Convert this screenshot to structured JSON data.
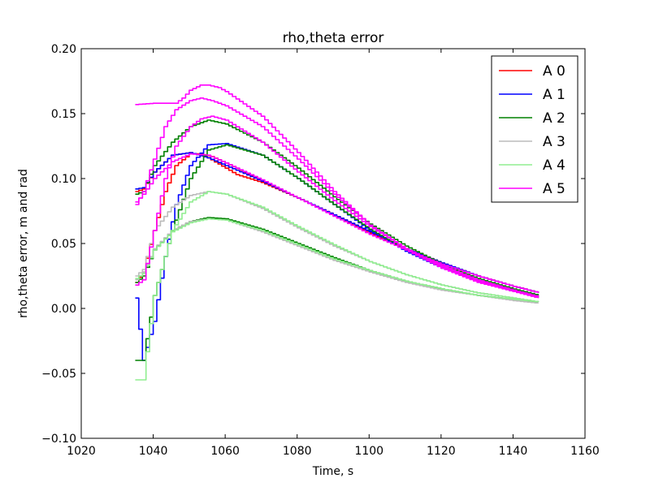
{
  "chart_data": {
    "type": "line",
    "title": "rho,theta error",
    "xlabel": "Time, s",
    "ylabel": "rho,theta error, m and rad",
    "xlim": [
      1020,
      1160
    ],
    "ylim": [
      -0.1,
      0.2
    ],
    "xticks": [
      1020,
      1040,
      1060,
      1080,
      1100,
      1120,
      1140,
      1160
    ],
    "yticks": [
      -0.1,
      -0.05,
      0.0,
      0.05,
      0.1,
      0.15,
      0.2
    ],
    "xtick_labels": [
      "1020",
      "1040",
      "1060",
      "1080",
      "1100",
      "1120",
      "1140",
      "1160"
    ],
    "ytick_labels": [
      "−0.10",
      "−0.05",
      "0.00",
      "0.05",
      "0.10",
      "0.15",
      "0.20"
    ],
    "grid": false,
    "legend_position": "top-right",
    "series": [
      {
        "name": "A 0",
        "color": "#ff0000",
        "curves": [
          {
            "x": [
              1035,
              1037,
              1040,
              1045,
              1050,
              1055,
              1060,
              1063,
              1070,
              1080,
              1090,
              1100,
              1110,
              1120,
              1130,
              1140,
              1147
            ],
            "y": [
              0.09,
              0.092,
              0.105,
              0.118,
              0.12,
              0.116,
              0.108,
              0.103,
              0.097,
              0.085,
              0.072,
              0.058,
              0.045,
              0.034,
              0.025,
              0.017,
              0.012
            ]
          },
          {
            "x": [
              1035,
              1037,
              1040,
              1043,
              1046,
              1050,
              1053,
              1056,
              1060,
              1065,
              1070,
              1080,
              1090,
              1100,
              1110,
              1120,
              1130,
              1140,
              1147
            ],
            "y": [
              0.02,
              0.028,
              0.06,
              0.09,
              0.11,
              0.119,
              0.119,
              0.117,
              0.112,
              0.105,
              0.098,
              0.085,
              0.072,
              0.059,
              0.046,
              0.035,
              0.025,
              0.017,
              0.012
            ]
          }
        ]
      },
      {
        "name": "A 1",
        "color": "#0000ff",
        "curves": [
          {
            "x": [
              1035,
              1037,
              1040,
              1045,
              1050,
              1055,
              1060,
              1070,
              1080,
              1090,
              1100,
              1110,
              1120,
              1130,
              1140,
              1147
            ],
            "y": [
              0.092,
              0.093,
              0.105,
              0.118,
              0.12,
              0.116,
              0.11,
              0.098,
              0.085,
              0.072,
              0.059,
              0.046,
              0.035,
              0.025,
              0.017,
              0.012
            ]
          },
          {
            "x": [
              1035,
              1037,
              1040,
              1043,
              1046,
              1050,
              1055,
              1060,
              1070,
              1080,
              1090,
              1100,
              1110,
              1120,
              1130,
              1140,
              1147
            ],
            "y": [
              0.008,
              -0.04,
              -0.01,
              0.04,
              0.08,
              0.11,
              0.126,
              0.127,
              0.118,
              0.1,
              0.08,
              0.06,
              0.044,
              0.031,
              0.021,
              0.013,
              0.009
            ]
          }
        ]
      },
      {
        "name": "A 2",
        "color": "#008000",
        "curves": [
          {
            "x": [
              1035,
              1037,
              1040,
              1045,
              1050,
              1055,
              1060,
              1070,
              1080,
              1090,
              1100,
              1110,
              1120,
              1130,
              1140,
              1147
            ],
            "y": [
              -0.04,
              -0.04,
              0.01,
              0.06,
              0.1,
              0.122,
              0.126,
              0.118,
              0.1,
              0.08,
              0.061,
              0.045,
              0.032,
              0.021,
              0.013,
              0.009
            ]
          },
          {
            "x": [
              1035,
              1037,
              1040,
              1045,
              1050,
              1055,
              1060,
              1070,
              1080,
              1090,
              1100,
              1110,
              1120,
              1130,
              1140,
              1147
            ],
            "y": [
              0.088,
              0.09,
              0.11,
              0.128,
              0.14,
              0.145,
              0.142,
              0.128,
              0.108,
              0.086,
              0.065,
              0.048,
              0.034,
              0.023,
              0.015,
              0.01
            ]
          },
          {
            "x": [
              1035,
              1037,
              1040,
              1045,
              1050,
              1055,
              1060,
              1070,
              1080,
              1090,
              1100,
              1110,
              1120,
              1130,
              1140,
              1147
            ],
            "y": [
              0.02,
              0.025,
              0.045,
              0.06,
              0.067,
              0.07,
              0.069,
              0.061,
              0.05,
              0.039,
              0.029,
              0.021,
              0.015,
              0.01,
              0.007,
              0.005
            ]
          }
        ]
      },
      {
        "name": "A 3",
        "color": "#bbbbbb",
        "curves": [
          {
            "x": [
              1035,
              1037,
              1040,
              1045,
              1050,
              1055,
              1060,
              1070,
              1080,
              1090,
              1100,
              1110,
              1120,
              1130,
              1140,
              1147
            ],
            "y": [
              0.022,
              0.028,
              0.046,
              0.06,
              0.067,
              0.069,
              0.068,
              0.059,
              0.048,
              0.037,
              0.028,
              0.02,
              0.014,
              0.01,
              0.006,
              0.004
            ]
          },
          {
            "x": [
              1035,
              1037,
              1040,
              1045,
              1050,
              1055,
              1060,
              1070,
              1080,
              1090,
              1100,
              1110,
              1120,
              1130,
              1140,
              1147
            ],
            "y": [
              0.025,
              0.03,
              0.06,
              0.078,
              0.087,
              0.09,
              0.088,
              0.077,
              0.062,
              0.048,
              0.036,
              0.026,
              0.018,
              0.012,
              0.008,
              0.005
            ]
          }
        ]
      },
      {
        "name": "A 4",
        "color": "#90ee90",
        "curves": [
          {
            "x": [
              1035,
              1037,
              1040,
              1045,
              1050,
              1055,
              1060,
              1070,
              1080,
              1090,
              1100,
              1110,
              1120,
              1130,
              1140,
              1147
            ],
            "y": [
              -0.055,
              -0.055,
              0.01,
              0.06,
              0.082,
              0.09,
              0.088,
              0.078,
              0.063,
              0.049,
              0.036,
              0.026,
              0.018,
              0.012,
              0.008,
              0.005
            ]
          },
          {
            "x": [
              1035,
              1037,
              1040,
              1045,
              1050,
              1055,
              1060,
              1070,
              1080,
              1090,
              1100,
              1110,
              1120,
              1130,
              1140,
              1147
            ],
            "y": [
              0.023,
              0.027,
              0.045,
              0.059,
              0.066,
              0.069,
              0.068,
              0.06,
              0.049,
              0.038,
              0.029,
              0.021,
              0.015,
              0.01,
              0.007,
              0.005
            ]
          }
        ]
      },
      {
        "name": "A 5",
        "color": "#ff00ff",
        "curves": [
          {
            "x": [
              1035,
              1040,
              1046,
              1048,
              1050,
              1053,
              1055,
              1058,
              1060,
              1070,
              1080,
              1090,
              1100,
              1110,
              1120,
              1130,
              1140,
              1147
            ],
            "y": [
              0.157,
              0.158,
              0.158,
              0.162,
              0.168,
              0.172,
              0.172,
              0.17,
              0.167,
              0.148,
              0.12,
              0.09,
              0.064,
              0.045,
              0.031,
              0.02,
              0.013,
              0.008
            ]
          },
          {
            "x": [
              1035,
              1037,
              1040,
              1043,
              1046,
              1050,
              1053,
              1056,
              1060,
              1070,
              1080,
              1090,
              1100,
              1110,
              1120,
              1130,
              1140,
              1147
            ],
            "y": [
              0.08,
              0.09,
              0.115,
              0.14,
              0.153,
              0.16,
              0.162,
              0.16,
              0.156,
              0.14,
              0.115,
              0.088,
              0.064,
              0.046,
              0.032,
              0.021,
              0.013,
              0.008
            ]
          },
          {
            "x": [
              1035,
              1037,
              1040,
              1045,
              1050,
              1055,
              1060,
              1070,
              1080,
              1090,
              1100,
              1110,
              1120,
              1130,
              1140,
              1147
            ],
            "y": [
              0.082,
              0.088,
              0.1,
              0.113,
              0.119,
              0.118,
              0.112,
              0.099,
              0.085,
              0.071,
              0.057,
              0.045,
              0.034,
              0.025,
              0.017,
              0.012
            ]
          },
          {
            "x": [
              1035,
              1037,
              1040,
              1043,
              1046,
              1050,
              1053,
              1056,
              1060,
              1070,
              1080,
              1090,
              1100,
              1110,
              1120,
              1130,
              1140,
              1147
            ],
            "y": [
              0.018,
              0.022,
              0.06,
              0.1,
              0.125,
              0.14,
              0.146,
              0.148,
              0.145,
              0.128,
              0.105,
              0.083,
              0.063,
              0.046,
              0.033,
              0.022,
              0.014,
              0.009
            ]
          }
        ]
      }
    ]
  }
}
